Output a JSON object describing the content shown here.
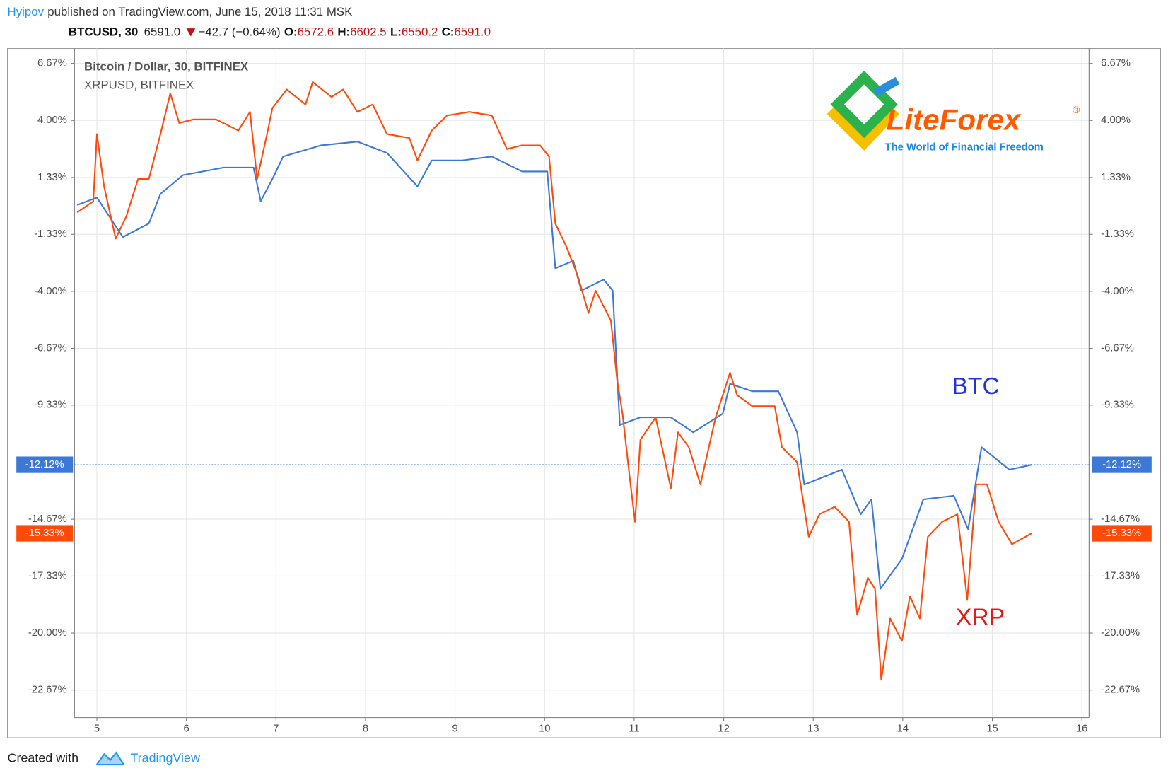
{
  "header": {
    "author": "Hyipov",
    "published": "published on TradingView.com, June 15, 2018 11:31 MSK",
    "symbol": "BTCUSD, 30",
    "last": "6591.0",
    "change": "−42.7 (−0.64%)",
    "ohlc": [
      {
        "key": "O:",
        "value": "6572.6"
      },
      {
        "key": "H:",
        "value": "6602.5"
      },
      {
        "key": "L:",
        "value": "6550.2"
      },
      {
        "key": "C:",
        "value": "6591.0"
      }
    ]
  },
  "logo": {
    "name": "LiteForex",
    "mark": "®",
    "tagline": "The World of Financial Freedom"
  },
  "footer": {
    "created": "Created with",
    "brand": "TradingView"
  },
  "chart_data": {
    "type": "line",
    "legend_texts": [
      "Bitcoin / Dollar, 30, BITFINEX",
      "XRPUSD, BITFINEX"
    ],
    "xlim": [
      4.75,
      16.08
    ],
    "xticks": [
      5,
      6,
      7,
      8,
      9,
      10,
      11,
      12,
      13,
      14,
      15,
      16
    ],
    "ylim": [
      -23.96,
      7.37
    ],
    "yticks": [
      {
        "value": 6.67,
        "label": "6.67%"
      },
      {
        "value": 4.0,
        "label": "4.00%"
      },
      {
        "value": 1.33,
        "label": "1.33%"
      },
      {
        "value": -1.33,
        "label": "-1.33%"
      },
      {
        "value": -4.0,
        "label": "-4.00%"
      },
      {
        "value": -6.67,
        "label": "-6.67%"
      },
      {
        "value": -9.33,
        "label": "-9.33%"
      },
      {
        "value": -14.67,
        "label": "-14.67%"
      },
      {
        "value": -17.33,
        "label": "-17.33%"
      },
      {
        "value": -20.0,
        "label": "-20.00%"
      },
      {
        "value": -22.67,
        "label": "-22.67%"
      }
    ],
    "grid": true,
    "series": [
      {
        "name": "BTC",
        "color": "#3b78d8",
        "label_color": "#2233dd",
        "last_label": "-12.12%",
        "x": [
          4.78,
          5.0,
          5.29,
          5.58,
          5.71,
          5.96,
          6.41,
          6.75,
          6.83,
          6.96,
          7.08,
          7.5,
          7.91,
          8.24,
          8.58,
          8.74,
          9.08,
          9.41,
          9.75,
          10.03,
          10.12,
          10.32,
          10.41,
          10.66,
          10.76,
          10.84,
          11.07,
          11.41,
          11.66,
          11.99,
          12.07,
          12.32,
          12.61,
          12.82,
          12.9,
          13.32,
          13.53,
          13.65,
          13.75,
          13.99,
          14.23,
          14.57,
          14.73,
          14.88,
          15.19,
          15.44
        ],
        "values": [
          0.04,
          0.39,
          -1.46,
          -0.83,
          0.56,
          1.44,
          1.79,
          1.79,
          0.22,
          1.26,
          2.31,
          2.83,
          3.01,
          2.48,
          0.91,
          2.13,
          2.13,
          2.31,
          1.61,
          1.61,
          -2.92,
          -2.57,
          -3.97,
          -3.45,
          -3.97,
          -10.26,
          -9.9,
          -9.9,
          -10.6,
          -9.73,
          -8.33,
          -8.68,
          -8.68,
          -10.6,
          -13.05,
          -12.35,
          -14.44,
          -13.74,
          -17.93,
          -16.53,
          -13.74,
          -13.57,
          -15.14,
          -11.3,
          -12.35,
          -12.12
        ]
      },
      {
        "name": "XRP",
        "color": "#ff4a0a",
        "label_color": "#e81818",
        "last_label": "-15.33%",
        "x": [
          4.78,
          4.96,
          5.0,
          5.08,
          5.21,
          5.33,
          5.46,
          5.58,
          5.71,
          5.82,
          5.92,
          6.08,
          6.33,
          6.58,
          6.71,
          6.79,
          6.9,
          6.96,
          7.12,
          7.33,
          7.41,
          7.62,
          7.75,
          7.91,
          8.08,
          8.24,
          8.49,
          8.58,
          8.74,
          8.91,
          9.16,
          9.41,
          9.58,
          9.74,
          9.95,
          10.05,
          10.12,
          10.24,
          10.37,
          10.49,
          10.57,
          10.74,
          10.81,
          10.87,
          10.95,
          11.01,
          11.07,
          11.24,
          11.41,
          11.49,
          11.61,
          11.74,
          11.91,
          12.07,
          12.15,
          12.32,
          12.57,
          12.65,
          12.82,
          12.95,
          13.07,
          13.24,
          13.4,
          13.49,
          13.61,
          13.69,
          13.76,
          13.86,
          13.99,
          14.08,
          14.19,
          14.28,
          14.44,
          14.61,
          14.72,
          14.82,
          14.94,
          15.07,
          15.22,
          15.44
        ],
        "values": [
          -0.31,
          0.21,
          3.36,
          0.91,
          -1.53,
          -0.48,
          1.26,
          1.26,
          3.36,
          5.27,
          3.88,
          4.05,
          4.05,
          3.53,
          4.4,
          1.26,
          3.36,
          4.58,
          5.45,
          4.75,
          5.8,
          5.1,
          5.45,
          4.4,
          4.75,
          3.36,
          3.18,
          2.13,
          3.53,
          4.23,
          4.4,
          4.23,
          2.66,
          2.83,
          2.83,
          2.31,
          -0.83,
          -1.88,
          -3.27,
          -5.02,
          -3.97,
          -5.37,
          -8.16,
          -9.73,
          -12.7,
          -14.79,
          -10.95,
          -9.9,
          -13.22,
          -10.6,
          -11.3,
          -13.04,
          -9.9,
          -7.81,
          -8.86,
          -9.38,
          -9.38,
          -11.3,
          -12.0,
          -15.49,
          -14.44,
          -14.09,
          -14.79,
          -19.15,
          -17.41,
          -17.93,
          -22.19,
          -19.32,
          -20.37,
          -18.28,
          -19.32,
          -15.49,
          -14.79,
          -14.44,
          -18.45,
          -13.04,
          -13.04,
          -14.79,
          -15.84,
          -15.33
        ]
      }
    ]
  }
}
